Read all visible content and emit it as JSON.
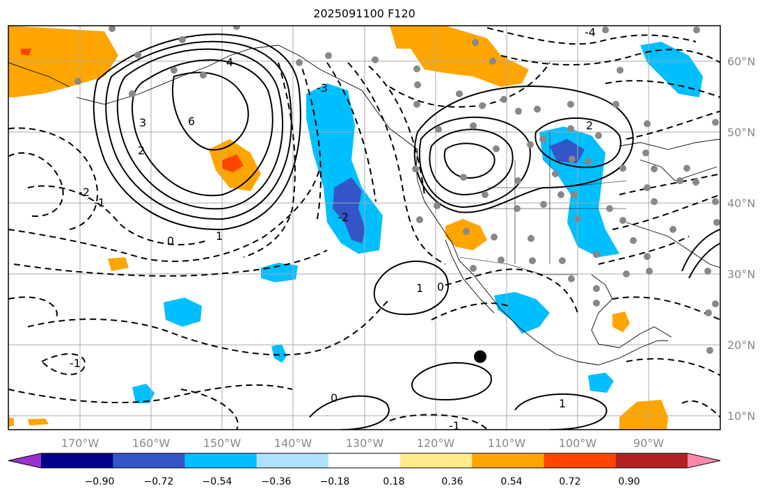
{
  "title": "2025091100 F120",
  "map": {
    "lon_labels": [
      "170°W",
      "160°W",
      "150°W",
      "140°W",
      "130°W",
      "120°W",
      "110°W",
      "100°W",
      "90°W"
    ],
    "lat_labels": [
      "60°N",
      "50°N",
      "40°N",
      "30°N",
      "20°N",
      "10°N"
    ],
    "contour_labels": [
      "6",
      "4",
      "3",
      "2",
      "1",
      "0",
      "-1",
      "-2",
      "-3",
      "-4",
      "2",
      "1",
      "0",
      "-1",
      "-2",
      "1",
      "0",
      "-1"
    ]
  },
  "colorbar": {
    "ticks": [
      "−0.90",
      "−0.72",
      "−0.54",
      "−0.36",
      "−0.18",
      "0.18",
      "0.36",
      "0.54",
      "0.72",
      "0.90"
    ],
    "colors": [
      "#9932cc",
      "#00008b",
      "#3455c8",
      "#00bfff",
      "#b0e0ff",
      "#ffffff",
      "#ffeb8a",
      "#ffa500",
      "#ff4500",
      "#b22222",
      "#ff88aa"
    ]
  },
  "colors": {
    "grid": "#aaaaaa",
    "coast": "#000000",
    "neg_blue": "#00bfff",
    "neg_dark": "#3455c8",
    "pos_orange": "#ffa500",
    "pos_red": "#ff4500"
  }
}
